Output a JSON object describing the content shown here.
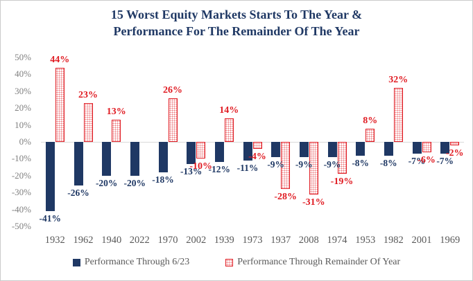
{
  "title": {
    "line1": "15 Worst Equity Markets Starts To The Year &",
    "line2": "Performance For The Remainder Of The Year"
  },
  "chart_data": {
    "type": "bar",
    "title": "15 Worst Equity Markets Starts To The Year & Performance For The Remainder Of The Year",
    "categories": [
      "1932",
      "1962",
      "1940",
      "2022",
      "1970",
      "2002",
      "1939",
      "1973",
      "1937",
      "2008",
      "1974",
      "1953",
      "1982",
      "2001",
      "1969"
    ],
    "series": [
      {
        "name": "Performance Through 6/23",
        "color": "#1F3864",
        "style": "solid",
        "values": [
          -41,
          -26,
          -20,
          -20,
          -18,
          -13,
          -12,
          -11,
          -9,
          -9,
          -9,
          -8,
          -8,
          -7,
          -7
        ]
      },
      {
        "name": "Performance Through Remainder Of Year",
        "color": "#e01b22",
        "style": "dotted-pattern",
        "values": [
          44,
          23,
          13,
          null,
          26,
          -10,
          14,
          -4,
          -28,
          -31,
          -19,
          8,
          32,
          -6,
          -2
        ]
      }
    ],
    "data_label_format": "{value}%",
    "yaxis": {
      "min": -50,
      "max": 50,
      "step": 10,
      "tick_labels": [
        "50%",
        "40%",
        "30%",
        "20%",
        "10%",
        "0%",
        "-10%",
        "-20%",
        "-30%",
        "-40%",
        "-50%"
      ]
    },
    "grid": false,
    "legend_position": "bottom"
  },
  "legend": {
    "series1_label": "Performance Through 6/23",
    "series2_label": "Performance Through Remainder Of Year"
  },
  "colors": {
    "title": "#1F3864",
    "navy_bar": "#1F3864",
    "red_bar": "#e01b22",
    "axis_text": "#808080",
    "category_text": "#595959",
    "zero_line": "#d9d9d9"
  }
}
